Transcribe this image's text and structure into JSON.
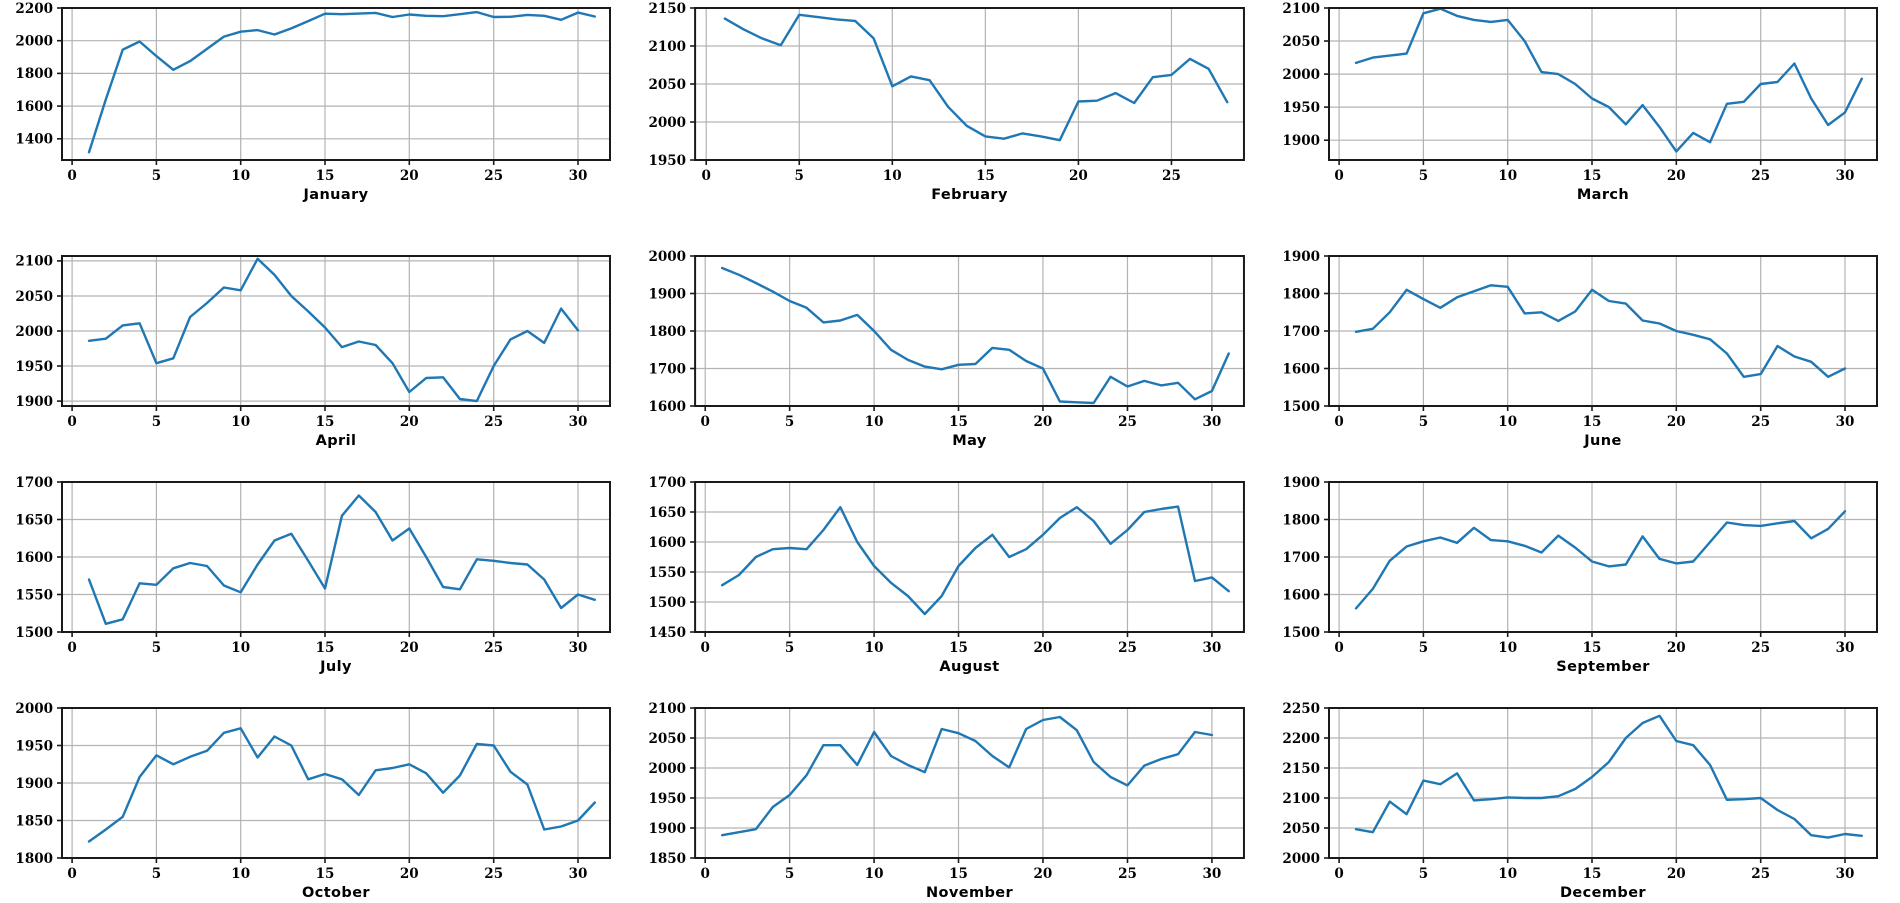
{
  "style": {
    "line_color": "#1f77b4",
    "grid_color": "#b3b3b3",
    "spine_color": "#1a1a1a",
    "text_color": "#000000",
    "background": "#ffffff"
  },
  "chart_data": [
    {
      "type": "line",
      "title": "January",
      "days": 31,
      "values": [
        1318,
        1640,
        1945,
        1995,
        1906,
        1822,
        1875,
        1950,
        2025,
        2055,
        2065,
        2038,
        2075,
        2120,
        2165,
        2162,
        2166,
        2170,
        2145,
        2160,
        2152,
        2150,
        2162,
        2175,
        2145,
        2146,
        2158,
        2152,
        2128,
        2172,
        2148
      ],
      "ylim": [
        1270,
        2200
      ],
      "yticks": [
        1400,
        1600,
        1800,
        2000,
        2200
      ],
      "xticks": [
        0,
        5,
        10,
        15,
        20,
        25,
        30
      ],
      "xlim": [
        -0.6,
        31.9
      ],
      "grid": true
    },
    {
      "type": "line",
      "title": "February",
      "days": 28,
      "values": [
        2136,
        2122,
        2110,
        2101,
        2141,
        2138,
        2135,
        2133,
        2110,
        2047,
        2060,
        2055,
        2020,
        1995,
        1981,
        1978,
        1985,
        1981,
        1976,
        2027,
        2028,
        2038,
        2025,
        2059,
        2062,
        2083,
        2070,
        2026
      ],
      "ylim": [
        1950,
        2150
      ],
      "yticks": [
        1950,
        2000,
        2050,
        2100,
        2150
      ],
      "xticks": [
        0,
        5,
        10,
        15,
        20,
        25
      ],
      "xlim": [
        -0.6,
        28.9
      ],
      "grid": true
    },
    {
      "type": "line",
      "title": "March",
      "days": 31,
      "values": [
        2017,
        2025,
        2028,
        2031,
        2092,
        2099,
        2088,
        2082,
        2079,
        2082,
        2050,
        2003,
        2000,
        1985,
        1963,
        1950,
        1924,
        1953,
        1920,
        1883,
        1911,
        1897,
        1955,
        1958,
        1985,
        1988,
        2016,
        1963,
        1923,
        1942,
        1993
      ],
      "ylim": [
        1870,
        2100
      ],
      "yticks": [
        1900,
        1950,
        2000,
        2050,
        2100
      ],
      "xticks": [
        0,
        5,
        10,
        15,
        20,
        25,
        30
      ],
      "xlim": [
        -0.6,
        31.9
      ],
      "grid": true
    },
    {
      "type": "line",
      "title": "April",
      "days": 30,
      "values": [
        1986,
        1989,
        2008,
        2011,
        1954,
        1961,
        2020,
        2040,
        2062,
        2058,
        2103,
        2080,
        2050,
        2028,
        2005,
        1977,
        1985,
        1980,
        1954,
        1913,
        1933,
        1934,
        1903,
        1900,
        1950,
        1988,
        2000,
        1983,
        2032,
        2001
      ],
      "ylim": [
        1893,
        2107
      ],
      "yticks": [
        1900,
        1950,
        2000,
        2050,
        2100
      ],
      "xticks": [
        0,
        5,
        10,
        15,
        20,
        25,
        30
      ],
      "xlim": [
        -0.6,
        31.9
      ],
      "grid": true
    },
    {
      "type": "line",
      "title": "May",
      "days": 31,
      "values": [
        1968,
        1950,
        1928,
        1905,
        1880,
        1862,
        1823,
        1828,
        1843,
        1800,
        1750,
        1723,
        1705,
        1698,
        1710,
        1712,
        1755,
        1750,
        1720,
        1700,
        1612,
        1610,
        1608,
        1678,
        1652,
        1667,
        1655,
        1662,
        1618,
        1640,
        1740
      ],
      "ylim": [
        1600,
        2000
      ],
      "yticks": [
        1600,
        1700,
        1800,
        1900,
        2000
      ],
      "xticks": [
        0,
        5,
        10,
        15,
        20,
        25,
        30
      ],
      "xlim": [
        -0.6,
        31.9
      ],
      "grid": true
    },
    {
      "type": "line",
      "title": "June",
      "days": 30,
      "values": [
        1698,
        1706,
        1750,
        1810,
        1785,
        1762,
        1790,
        1806,
        1822,
        1818,
        1747,
        1750,
        1727,
        1752,
        1810,
        1780,
        1773,
        1728,
        1720,
        1700,
        1690,
        1678,
        1640,
        1578,
        1585,
        1660,
        1632,
        1618,
        1578,
        1600
      ],
      "ylim": [
        1500,
        1900
      ],
      "yticks": [
        1500,
        1600,
        1700,
        1800,
        1900
      ],
      "xticks": [
        0,
        5,
        10,
        15,
        20,
        25,
        30
      ],
      "xlim": [
        -0.6,
        31.9
      ],
      "grid": true
    },
    {
      "type": "line",
      "title": "July",
      "days": 31,
      "values": [
        1570,
        1511,
        1517,
        1565,
        1563,
        1585,
        1592,
        1588,
        1562,
        1553,
        1590,
        1622,
        1631,
        1595,
        1558,
        1655,
        1682,
        1660,
        1622,
        1638,
        1600,
        1560,
        1557,
        1597,
        1595,
        1592,
        1590,
        1570,
        1532,
        1550,
        1543
      ],
      "ylim": [
        1500,
        1700
      ],
      "yticks": [
        1500,
        1550,
        1600,
        1650,
        1700
      ],
      "xticks": [
        0,
        5,
        10,
        15,
        20,
        25,
        30
      ],
      "xlim": [
        -0.6,
        31.9
      ],
      "grid": true
    },
    {
      "type": "line",
      "title": "August",
      "days": 31,
      "values": [
        1528,
        1545,
        1575,
        1588,
        1590,
        1588,
        1620,
        1658,
        1600,
        1560,
        1532,
        1510,
        1480,
        1510,
        1560,
        1590,
        1612,
        1575,
        1588,
        1612,
        1640,
        1658,
        1635,
        1597,
        1620,
        1650,
        1655,
        1659,
        1535,
        1541,
        1518
      ],
      "ylim": [
        1450,
        1700
      ],
      "yticks": [
        1450,
        1500,
        1550,
        1600,
        1650,
        1700
      ],
      "xticks": [
        0,
        5,
        10,
        15,
        20,
        25,
        30
      ],
      "xlim": [
        -0.6,
        31.9
      ],
      "grid": true
    },
    {
      "type": "line",
      "title": "September",
      "days": 30,
      "values": [
        1563,
        1615,
        1690,
        1728,
        1742,
        1752,
        1738,
        1778,
        1745,
        1742,
        1730,
        1712,
        1757,
        1725,
        1688,
        1675,
        1680,
        1755,
        1695,
        1683,
        1688,
        1740,
        1792,
        1785,
        1783,
        1790,
        1796,
        1750,
        1775,
        1822
      ],
      "ylim": [
        1500,
        1900
      ],
      "yticks": [
        1500,
        1600,
        1700,
        1800,
        1900
      ],
      "xticks": [
        0,
        5,
        10,
        15,
        20,
        25,
        30
      ],
      "xlim": [
        -0.6,
        31.9
      ],
      "grid": true
    },
    {
      "type": "line",
      "title": "October",
      "days": 31,
      "values": [
        1822,
        1838,
        1855,
        1908,
        1937,
        1925,
        1935,
        1943,
        1967,
        1973,
        1934,
        1962,
        1950,
        1905,
        1912,
        1905,
        1884,
        1917,
        1920,
        1925,
        1913,
        1887,
        1910,
        1952,
        1950,
        1915,
        1898,
        1838,
        1842,
        1850,
        1874
      ],
      "ylim": [
        1800,
        2000
      ],
      "yticks": [
        1800,
        1850,
        1900,
        1950,
        2000
      ],
      "xticks": [
        0,
        5,
        10,
        15,
        20,
        25,
        30
      ],
      "xlim": [
        -0.6,
        31.9
      ],
      "grid": true
    },
    {
      "type": "line",
      "title": "November",
      "days": 30,
      "values": [
        1888,
        1893,
        1898,
        1935,
        1955,
        1988,
        2038,
        2038,
        2005,
        2060,
        2020,
        2005,
        1993,
        2065,
        2058,
        2045,
        2020,
        2001,
        2065,
        2080,
        2085,
        2063,
        2010,
        1985,
        1971,
        2004,
        2015,
        2023,
        2060,
        2055
      ],
      "ylim": [
        1850,
        2100
      ],
      "yticks": [
        1850,
        1900,
        1950,
        2000,
        2050,
        2100
      ],
      "xticks": [
        0,
        5,
        10,
        15,
        20,
        25,
        30
      ],
      "xlim": [
        -0.6,
        31.9
      ],
      "grid": true
    },
    {
      "type": "line",
      "title": "December",
      "days": 31,
      "values": [
        2048,
        2043,
        2094,
        2073,
        2129,
        2123,
        2141,
        2096,
        2098,
        2101,
        2100,
        2100,
        2103,
        2115,
        2135,
        2160,
        2200,
        2225,
        2237,
        2195,
        2188,
        2155,
        2097,
        2098,
        2100,
        2080,
        2065,
        2038,
        2034,
        2040,
        2037
      ],
      "ylim": [
        2000,
        2250
      ],
      "yticks": [
        2000,
        2050,
        2100,
        2150,
        2200,
        2250
      ],
      "xticks": [
        0,
        5,
        10,
        15,
        20,
        25,
        30
      ],
      "xlim": [
        -0.6,
        31.9
      ],
      "grid": true
    }
  ]
}
